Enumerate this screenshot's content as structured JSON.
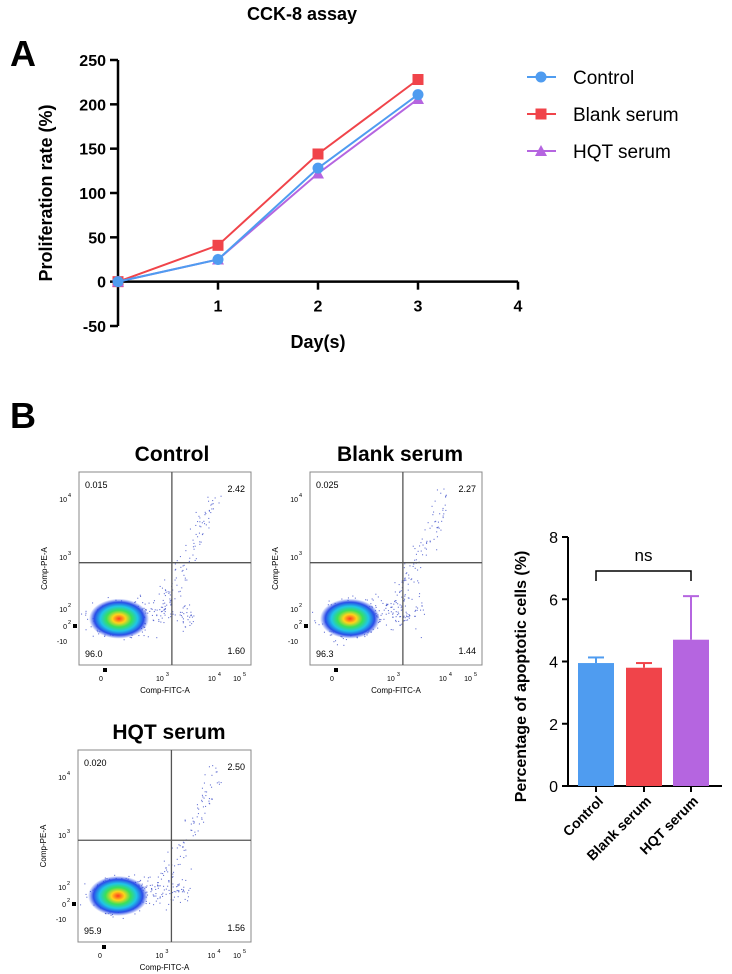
{
  "panel_a": {
    "letter": "A",
    "chart_data": {
      "type": "line",
      "title": "CCK-8 assay",
      "xlabel": "Day(s)",
      "ylabel": "Proliferation rate (%)",
      "x": [
        0,
        1,
        2,
        3
      ],
      "xlim": [
        0,
        4
      ],
      "ylim": [
        -50,
        250
      ],
      "xticks": [
        1,
        2,
        3,
        4
      ],
      "yticks": [
        -50,
        0,
        50,
        100,
        150,
        200,
        250
      ],
      "series": [
        {
          "name": "Control",
          "values": [
            0,
            25,
            128,
            211
          ],
          "color": "#4f9cf0",
          "marker": "circle"
        },
        {
          "name": "Blank serum",
          "values": [
            0,
            41,
            144,
            228
          ],
          "color": "#f0444a",
          "marker": "square"
        },
        {
          "name": "HQT serum",
          "values": [
            0,
            25,
            122,
            206
          ],
          "color": "#b565e0",
          "marker": "triangle"
        }
      ],
      "legend": "right"
    }
  },
  "panel_b": {
    "letter": "B",
    "flow_plots": [
      {
        "title": "Control",
        "q_ul": "0.015",
        "q_ur": "2.42",
        "q_ll": "96.0",
        "q_lr": "1.60",
        "xlabel": "Comp-FITC-A",
        "ylabel": "Comp-PE-A"
      },
      {
        "title": "Blank serum",
        "q_ul": "0.025",
        "q_ur": "2.27",
        "q_ll": "96.3",
        "q_lr": "1.44",
        "xlabel": "Comp-FITC-A",
        "ylabel": "Comp-PE-A"
      },
      {
        "title": "HQT serum",
        "q_ul": "0.020",
        "q_ur": "2.50",
        "q_ll": "95.9",
        "q_lr": "1.56",
        "xlabel": "Comp-FITC-A",
        "ylabel": "Comp-PE-A"
      }
    ],
    "flow_tick_labels": {
      "x": [
        "0",
        "10",
        "10",
        "10",
        "10"
      ],
      "x_exp": [
        "",
        "3",
        "4",
        "5"
      ],
      "y": [
        "10",
        "10",
        "10",
        "0",
        "-10"
      ],
      "y_exp": [
        "4",
        "3",
        "2",
        "2"
      ]
    },
    "chart_data": {
      "type": "bar",
      "categories": [
        "Control",
        "Blank serum",
        "HQT serum"
      ],
      "values": [
        3.95,
        3.8,
        4.7
      ],
      "errors": [
        0.18,
        0.15,
        1.4
      ],
      "colors": [
        "#4f9cf0",
        "#f0444a",
        "#b565e0"
      ],
      "ylabel": "Percentage of apoptotic cells (%)",
      "ylim": [
        0,
        8
      ],
      "yticks": [
        0,
        2,
        4,
        6,
        8
      ],
      "annotation": "ns"
    }
  }
}
